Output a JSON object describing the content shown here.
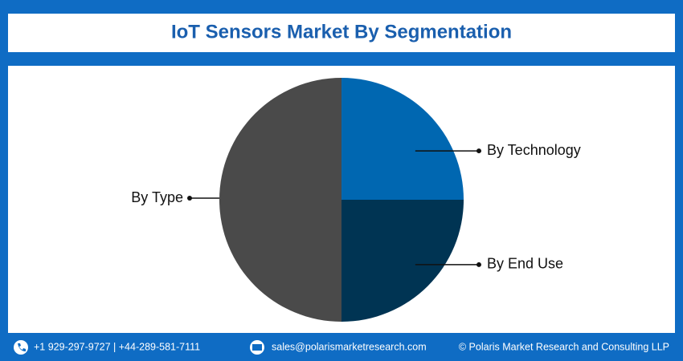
{
  "chart_data": {
    "type": "pie",
    "title": "IoT Sensors Market By Segmentation",
    "categories": [
      "By Technology",
      "By End Use",
      "By Type"
    ],
    "values": [
      25,
      25,
      50
    ],
    "colors": [
      "#0067b1",
      "#003453",
      "#4a4a4a"
    ]
  },
  "footer": {
    "phone": "+1 929-297-9727 | +44-289-581-7111",
    "email": "sales@polarismarketresearch.com",
    "copyright": "© Polaris Market Research and Consulting LLP"
  }
}
